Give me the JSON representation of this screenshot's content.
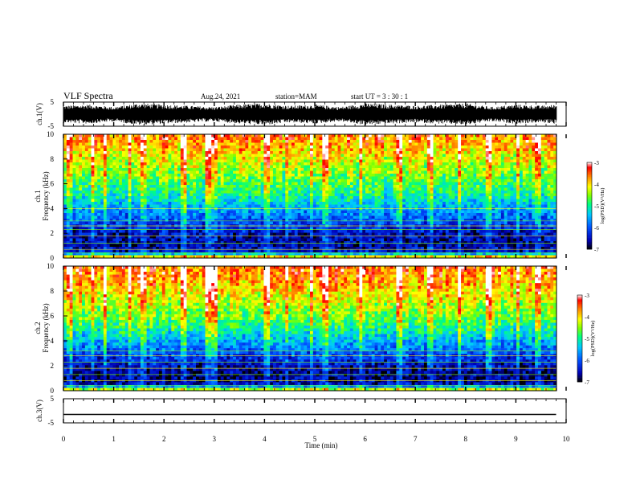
{
  "header": {
    "title": "VLF Spectra",
    "date": "Aug.24, 2021",
    "station": "station=MAM",
    "start": "start UT =  3 : 30 : 1"
  },
  "colors": {
    "colormap": [
      "#000000",
      "#0000c8",
      "#0050ff",
      "#00c8ff",
      "#00ff80",
      "#80ff00",
      "#ffff00",
      "#ff8000",
      "#ff0000",
      "#ffffff"
    ],
    "trace": "#000000",
    "axes": "#000000"
  },
  "colorbar": {
    "label": "log(PSD)(V²/Hz)",
    "ticks": [
      "-3",
      "-4",
      "-5",
      "-6",
      "-7"
    ]
  },
  "chart_data": [
    {
      "type": "line",
      "ylabel": "ch.1(V)",
      "ylim": [
        -5,
        5
      ],
      "yticks": [
        "5",
        "-5"
      ],
      "xlim": [
        0,
        10
      ],
      "description_values": {
        "min": -5,
        "max": 5
      },
      "x": [
        0,
        0.5,
        1,
        1.5,
        2,
        2.5,
        3,
        3.5,
        4,
        4.5,
        5,
        5.5,
        6,
        6.5,
        7,
        7.5,
        8,
        8.5,
        9,
        9.5,
        9.8
      ],
      "y_upper": [
        3.5,
        4,
        3,
        4.5,
        4,
        3.5,
        3,
        4,
        4.5,
        3.5,
        4,
        3,
        4.5,
        4,
        3.5,
        4,
        4.5,
        3,
        4,
        3.5,
        4
      ],
      "y_lower": [
        -3.5,
        -4,
        -3,
        -4.5,
        -4,
        -3.5,
        -3,
        -4,
        -4.5,
        -3.5,
        -4,
        -3,
        -4.5,
        -4,
        -3.5,
        -4,
        -4.5,
        -3,
        -4,
        -3.5,
        -4
      ]
    },
    {
      "type": "heatmap",
      "channel_label": "ch.1",
      "ylabel": "Frequency (kHz)",
      "ylim": [
        0,
        10
      ],
      "yticks": [
        "0",
        "2",
        "4",
        "6",
        "8",
        "10"
      ],
      "xlim": [
        0,
        10
      ],
      "zlim": [
        -7,
        -3
      ],
      "profile_freq_khz": [
        0,
        0.5,
        1,
        2,
        3,
        4,
        5,
        6,
        7,
        8,
        9,
        10
      ],
      "profile_log_psd": [
        -3.5,
        -6.4,
        -6.6,
        -6.5,
        -6.0,
        -5.6,
        -5.1,
        -4.8,
        -4.5,
        -4.2,
        -3.9,
        -3.6
      ],
      "horizontal_lines_khz": [
        0.4,
        0.7,
        1.2,
        1.8,
        2.3,
        2.6,
        3.0,
        4.0
      ],
      "bright_times_min": [
        0.1,
        0.55,
        0.8,
        1.3,
        1.6,
        2.4,
        2.9,
        3.05,
        4.1,
        4.5,
        5.0,
        5.3,
        6.0,
        6.8,
        7.4,
        8.0,
        8.6,
        9.2,
        9.6
      ]
    },
    {
      "type": "heatmap",
      "channel_label": "ch.2",
      "ylabel": "Frequency (kHz)",
      "ylim": [
        0,
        10
      ],
      "yticks": [
        "0",
        "2",
        "4",
        "6",
        "8",
        "10"
      ],
      "xlim": [
        0,
        10
      ],
      "zlim": [
        -7,
        -3
      ],
      "profile_freq_khz": [
        0,
        0.5,
        1,
        2,
        3,
        4,
        5,
        6,
        7,
        8,
        9,
        10
      ],
      "profile_log_psd": [
        -3.8,
        -6.5,
        -6.7,
        -6.5,
        -6.0,
        -5.5,
        -5.0,
        -4.6,
        -4.3,
        -4.0,
        -3.7,
        -3.5
      ],
      "horizontal_lines_khz": [
        0.4,
        0.8,
        1.3,
        1.8,
        2.3,
        2.8,
        3.2
      ],
      "bright_times_min": [
        0.1,
        0.55,
        0.8,
        1.3,
        1.6,
        2.4,
        2.9,
        3.05,
        4.1,
        4.5,
        5.0,
        5.3,
        6.0,
        6.8,
        7.4,
        8.0,
        8.6,
        9.2,
        9.6
      ]
    },
    {
      "type": "line",
      "ylabel": "ch.3(V)",
      "ylim": [
        -5,
        5
      ],
      "yticks": [
        "5",
        "-5"
      ],
      "xlim": [
        0,
        10
      ],
      "x": [
        0,
        9.8
      ],
      "y": [
        -1.5,
        -1.5
      ],
      "xlabel": "Time (min)",
      "xticks": [
        "0",
        "1",
        "2",
        "3",
        "4",
        "5",
        "6",
        "7",
        "8",
        "9",
        "10"
      ]
    }
  ]
}
